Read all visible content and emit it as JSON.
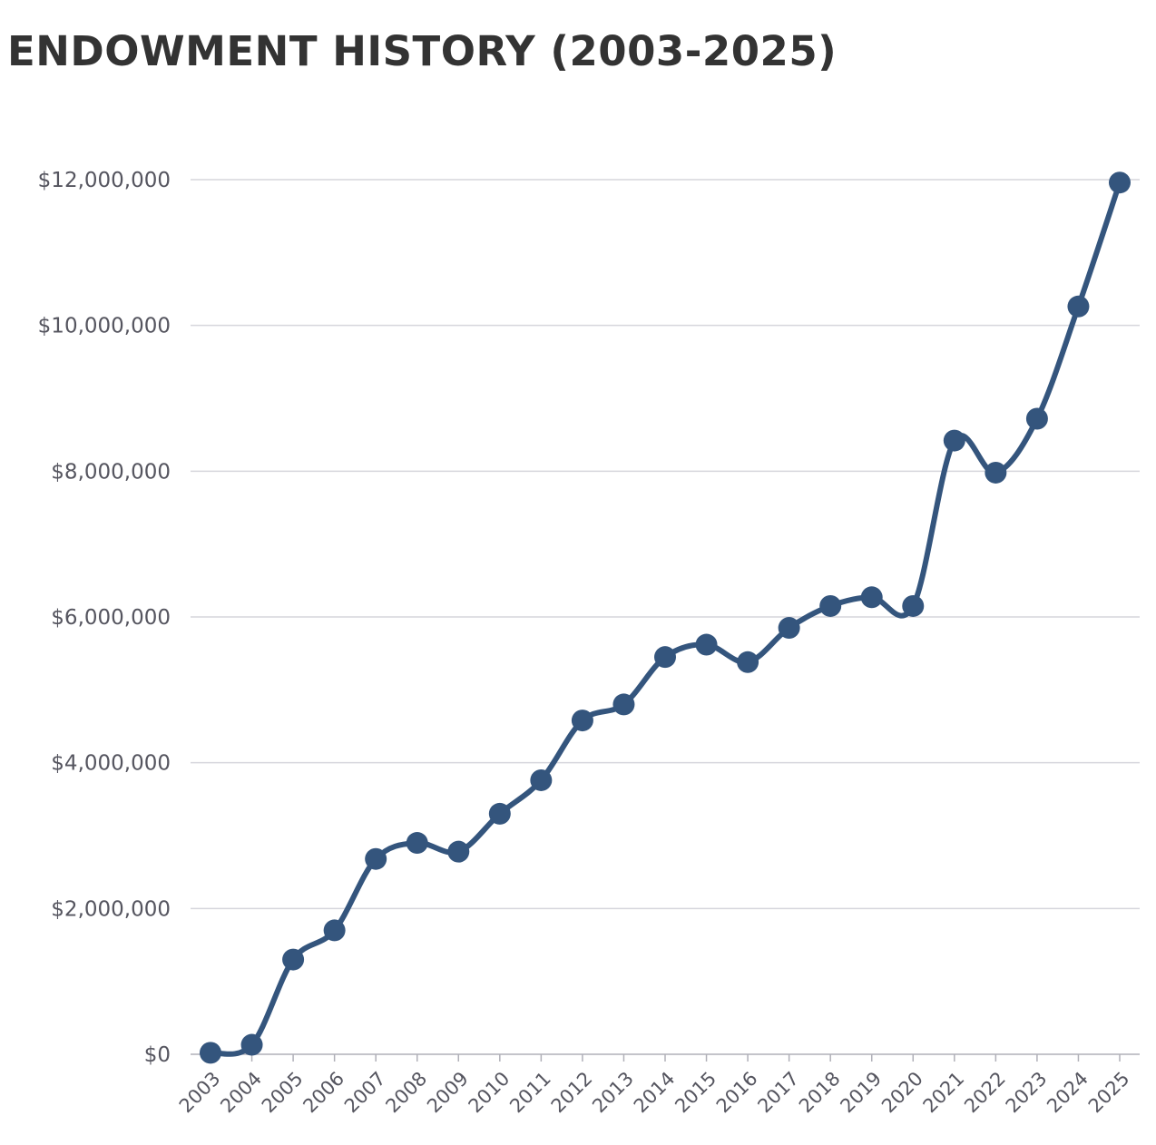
{
  "chart_data": {
    "type": "line",
    "title": "ENDOWMENT HISTORY (2003-2025)",
    "xlabel": "",
    "ylabel": "",
    "x": [
      "2003",
      "2004",
      "2005",
      "2006",
      "2007",
      "2008",
      "2009",
      "2010",
      "2011",
      "2012",
      "2013",
      "2014",
      "2015",
      "2016",
      "2017",
      "2018",
      "2019",
      "2020",
      "2021",
      "2022",
      "2023",
      "2024",
      "2025"
    ],
    "values": [
      20000,
      130000,
      1300000,
      1700000,
      2680000,
      2900000,
      2780000,
      3300000,
      3760000,
      4580000,
      4800000,
      5450000,
      5620000,
      5380000,
      5850000,
      6150000,
      6270000,
      6150000,
      8420000,
      7980000,
      8720000,
      10260000,
      11960000
    ],
    "ylim": [
      0,
      12000000
    ],
    "yticks": [
      0,
      2000000,
      4000000,
      6000000,
      8000000,
      10000000,
      12000000
    ],
    "ytick_labels": [
      "$0",
      "$2,000,000",
      "$4,000,000",
      "$6,000,000",
      "$8,000,000",
      "$10,000,000",
      "$12,000,000"
    ],
    "grid": true,
    "legend": "none",
    "color": "#34557d"
  }
}
